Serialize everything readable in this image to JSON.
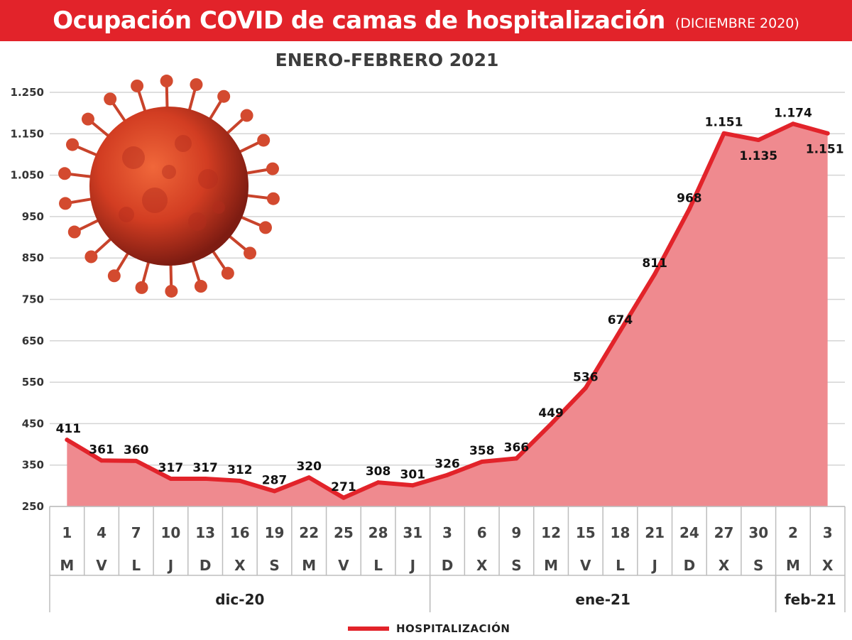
{
  "header": {
    "title": "Ocupación COVID de camas de hospitalización",
    "subtitle": "(DICIEMBRE 2020)"
  },
  "colors": {
    "accent": "#e2232a",
    "area_fill": "#ef8a8f",
    "grid": "#d4d4d4"
  },
  "image_icon": "coronavirus-icon",
  "chart_data": {
    "type": "area",
    "title": "ENERO-FEBRERO 2021",
    "ylim": [
      250,
      1250
    ],
    "yticks": [
      250,
      350,
      450,
      550,
      650,
      750,
      850,
      950,
      1050,
      1150,
      1250
    ],
    "ytick_labels": [
      "250",
      "350",
      "450",
      "550",
      "650",
      "750",
      "850",
      "950",
      "1.050",
      "1.150",
      "1.250"
    ],
    "grid": true,
    "x_days": [
      "1",
      "4",
      "7",
      "10",
      "13",
      "16",
      "19",
      "22",
      "25",
      "28",
      "31",
      "3",
      "6",
      "9",
      "12",
      "15",
      "18",
      "21",
      "24",
      "27",
      "30",
      "2",
      "3"
    ],
    "x_weekdays": [
      "M",
      "V",
      "L",
      "J",
      "D",
      "X",
      "S",
      "M",
      "V",
      "L",
      "J",
      "D",
      "X",
      "S",
      "M",
      "V",
      "L",
      "J",
      "D",
      "X",
      "S",
      "M",
      "X"
    ],
    "months": [
      {
        "label": "dic-20",
        "start": 0,
        "end": 10
      },
      {
        "label": "ene-21",
        "start": 11,
        "end": 20
      },
      {
        "label": "feb-21",
        "start": 21,
        "end": 22
      }
    ],
    "series": [
      {
        "name": "HOSPITALIZACIÓN",
        "values": [
          411,
          361,
          360,
          317,
          317,
          312,
          287,
          320,
          271,
          308,
          301,
          326,
          358,
          366,
          449,
          536,
          674,
          811,
          968,
          1151,
          1135,
          1174,
          1151
        ],
        "labels": [
          "411",
          "361",
          "360",
          "317",
          "317",
          "312",
          "287",
          "320",
          "271",
          "308",
          "301",
          "326",
          "358",
          "366",
          "449",
          "536",
          "674",
          "811",
          "968",
          "1.151",
          "1.135",
          "1.174",
          "1.151"
        ]
      }
    ],
    "legend_position": "bottom-center"
  }
}
